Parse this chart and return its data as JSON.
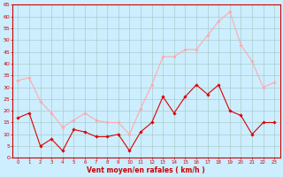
{
  "x": [
    0,
    1,
    2,
    3,
    4,
    5,
    6,
    7,
    8,
    9,
    10,
    11,
    12,
    13,
    14,
    15,
    16,
    17,
    18,
    19,
    20,
    21,
    22,
    23
  ],
  "wind_avg": [
    17,
    19,
    5,
    8,
    3,
    12,
    11,
    9,
    9,
    10,
    3,
    11,
    15,
    26,
    19,
    26,
    31,
    27,
    31,
    20,
    18,
    10,
    15,
    15
  ],
  "wind_gust": [
    33,
    34,
    24,
    19,
    13,
    16,
    19,
    16,
    15,
    15,
    10,
    21,
    31,
    43,
    43,
    46,
    46,
    52,
    58,
    62,
    48,
    41,
    30,
    32
  ],
  "bg_color": "#cceeff",
  "grid_color": "#aacccc",
  "avg_color": "#dd0000",
  "gust_color": "#ffaaaa",
  "xlabel": "Vent moyen/en rafales ( km/h )",
  "xlabel_color": "#cc0000",
  "tick_color": "#cc0000",
  "spine_color": "#cc0000",
  "ylim": [
    0,
    65
  ],
  "yticks": [
    0,
    5,
    10,
    15,
    20,
    25,
    30,
    35,
    40,
    45,
    50,
    55,
    60,
    65
  ],
  "xlim": [
    -0.5,
    23.5
  ]
}
